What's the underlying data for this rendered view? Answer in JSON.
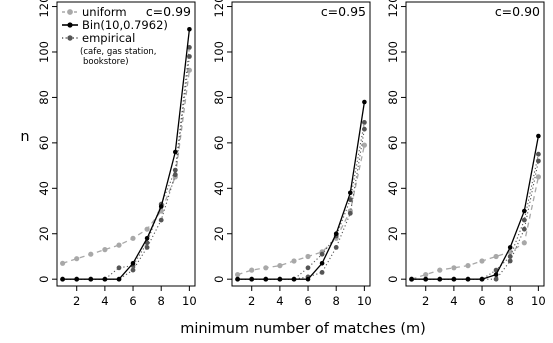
{
  "chart_data": {
    "type": "line",
    "xlabel": "minimum number of matches (m)",
    "ylabel": "n",
    "xlim": [
      0.6,
      10.4
    ],
    "ylim": [
      -3,
      122
    ],
    "xticks": [
      2,
      4,
      6,
      8,
      10
    ],
    "yticks": [
      0,
      20,
      40,
      60,
      80,
      100,
      120
    ],
    "grid": false,
    "legend": {
      "placement": "top-left",
      "entries": [
        {
          "label": "uniform",
          "style": "dashed",
          "color": "#a8a8a8"
        },
        {
          "label": "Bin(10,0.7962)",
          "style": "solid",
          "color": "#000000"
        },
        {
          "label": "empirical",
          "style": "dotted",
          "color": "#555555",
          "sublabel": [
            "(cafe, gas station,",
            "bookstore)"
          ]
        }
      ]
    },
    "panels": [
      {
        "label": "c=0.99",
        "series": [
          {
            "name": "uniform",
            "x": [
              1,
              2,
              3,
              4,
              5,
              6,
              7,
              8,
              9,
              10
            ],
            "values": [
              7,
              9,
              11,
              13,
              15,
              18,
              22,
              30,
              45,
              92
            ]
          },
          {
            "name": "Bin(10,0.7962)",
            "x": [
              1,
              2,
              3,
              4,
              5,
              6,
              7,
              8,
              9,
              10
            ],
            "values": [
              0,
              0,
              0,
              0,
              0,
              7,
              18,
              32,
              56,
              110
            ]
          },
          {
            "name": "empirical",
            "x": [
              1,
              2,
              3,
              4,
              5,
              6,
              7,
              8,
              9,
              10
            ],
            "values": [
              0,
              0,
              0,
              0,
              5,
              6,
              16,
              33,
              48,
              102
            ]
          },
          {
            "name": "empirical",
            "x": [
              1,
              2,
              3,
              4,
              5,
              6,
              7,
              8,
              9,
              10
            ],
            "values": [
              0,
              0,
              0,
              0,
              0,
              4,
              14,
              26,
              46,
              98
            ]
          }
        ]
      },
      {
        "label": "c=0.95",
        "series": [
          {
            "name": "uniform",
            "x": [
              1,
              2,
              3,
              4,
              5,
              6,
              7,
              8,
              9,
              10
            ],
            "values": [
              2,
              4,
              5,
              6,
              8,
              10,
              12,
              18,
              30,
              59
            ]
          },
          {
            "name": "Bin(10,0.7962)",
            "x": [
              1,
              2,
              3,
              4,
              5,
              6,
              7,
              8,
              9,
              10
            ],
            "values": [
              0,
              0,
              0,
              0,
              0,
              0,
              7,
              20,
              38,
              78
            ]
          },
          {
            "name": "empirical",
            "x": [
              1,
              2,
              3,
              4,
              5,
              6,
              7,
              8,
              9,
              10
            ],
            "values": [
              0,
              0,
              0,
              0,
              0,
              5,
              11,
              19,
              35,
              69
            ]
          },
          {
            "name": "empirical",
            "x": [
              1,
              2,
              3,
              4,
              5,
              6,
              7,
              8,
              9,
              10
            ],
            "values": [
              0,
              0,
              0,
              0,
              0,
              1,
              3,
              14,
              29,
              66
            ]
          }
        ]
      },
      {
        "label": "c=0.90",
        "series": [
          {
            "name": "uniform",
            "x": [
              1,
              2,
              3,
              4,
              5,
              6,
              7,
              8,
              9,
              10
            ],
            "values": [
              0,
              2,
              4,
              5,
              6,
              8,
              10,
              12,
              16,
              45
            ]
          },
          {
            "name": "Bin(10,0.7962)",
            "x": [
              1,
              2,
              3,
              4,
              5,
              6,
              7,
              8,
              9,
              10
            ],
            "values": [
              0,
              0,
              0,
              0,
              0,
              0,
              2,
              14,
              30,
              63
            ]
          },
          {
            "name": "empirical",
            "x": [
              1,
              2,
              3,
              4,
              5,
              6,
              7,
              8,
              9,
              10
            ],
            "values": [
              0,
              0,
              0,
              0,
              0,
              0,
              4,
              10,
              26,
              55
            ]
          },
          {
            "name": "empirical",
            "x": [
              1,
              2,
              3,
              4,
              5,
              6,
              7,
              8,
              9,
              10
            ],
            "values": [
              0,
              0,
              0,
              0,
              0,
              0,
              0,
              8,
              22,
              52
            ]
          }
        ]
      }
    ]
  }
}
